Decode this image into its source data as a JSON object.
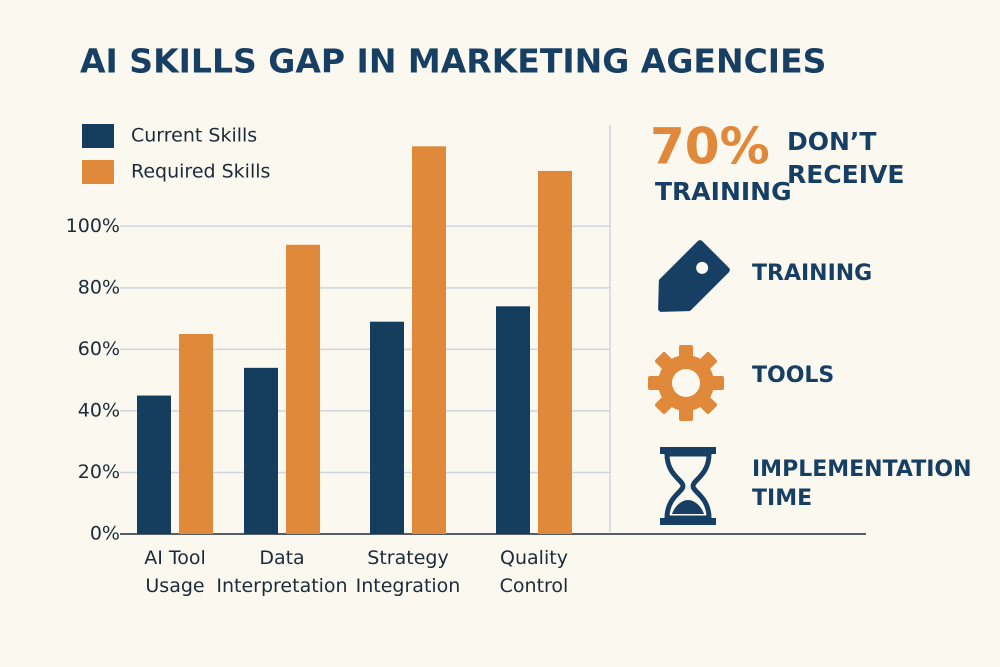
{
  "chart_data": {
    "type": "bar",
    "title": "AI SKILLS GAP IN MARKETING AGENCIES",
    "categories": [
      "AI Tool\nUsage",
      "Data\nInterpretation",
      "Strategy\nIntegration",
      "Quality\nControl"
    ],
    "series": [
      {
        "name": "Current Skills",
        "color": "#143d5e",
        "values": [
          45,
          54,
          69,
          74
        ]
      },
      {
        "name": "Required Skills",
        "color": "#e0893a",
        "values": [
          65,
          94,
          126,
          118
        ]
      }
    ],
    "ylim": [
      0,
      130
    ],
    "yticks": [
      {
        "value": 0,
        "label": "0%"
      },
      {
        "value": 20,
        "label": "20%"
      },
      {
        "value": 40,
        "label": "40%"
      },
      {
        "value": 60,
        "label": "60%"
      },
      {
        "value": 80,
        "label": "80%"
      },
      {
        "value": 100,
        "label": "100%"
      }
    ],
    "grid": true,
    "legend": "top-left"
  },
  "sidebar": {
    "stat": "70%",
    "stat_text": [
      "DON’T",
      "RECEIVE",
      "TRAINING"
    ],
    "items": [
      "TRAINING",
      "TOOLS",
      "IMPLEMENTATION\nTIME"
    ]
  }
}
